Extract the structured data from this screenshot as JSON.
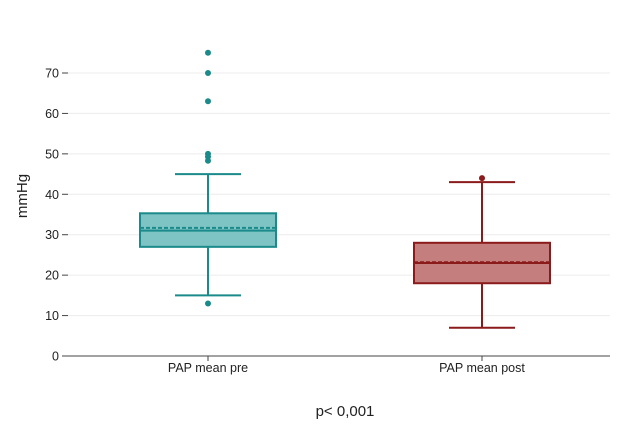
{
  "chart_data": {
    "type": "box",
    "ylabel": "mmHg",
    "ylim": [
      0,
      80
    ],
    "yticks": [
      0,
      10,
      20,
      30,
      40,
      50,
      60,
      70
    ],
    "grid": true,
    "footnote": "p< 0,001",
    "series": [
      {
        "category": "PAP mean pre",
        "color": "#1a8a8a",
        "fill": "#7ec4c4",
        "whisker_low": 15,
        "q1": 27,
        "median": 31,
        "mean": 31.7,
        "q3": 35.3,
        "whisker_high": 45,
        "outliers": [
          75,
          70,
          63,
          50,
          49.3,
          48.3,
          13
        ]
      },
      {
        "category": "PAP mean post",
        "color": "#8b1a1a",
        "fill": "#c47e7e",
        "whisker_low": 7,
        "q1": 18,
        "median": 23,
        "mean": 23.2,
        "q3": 28,
        "whisker_high": 43,
        "outliers": [
          44
        ]
      }
    ]
  }
}
